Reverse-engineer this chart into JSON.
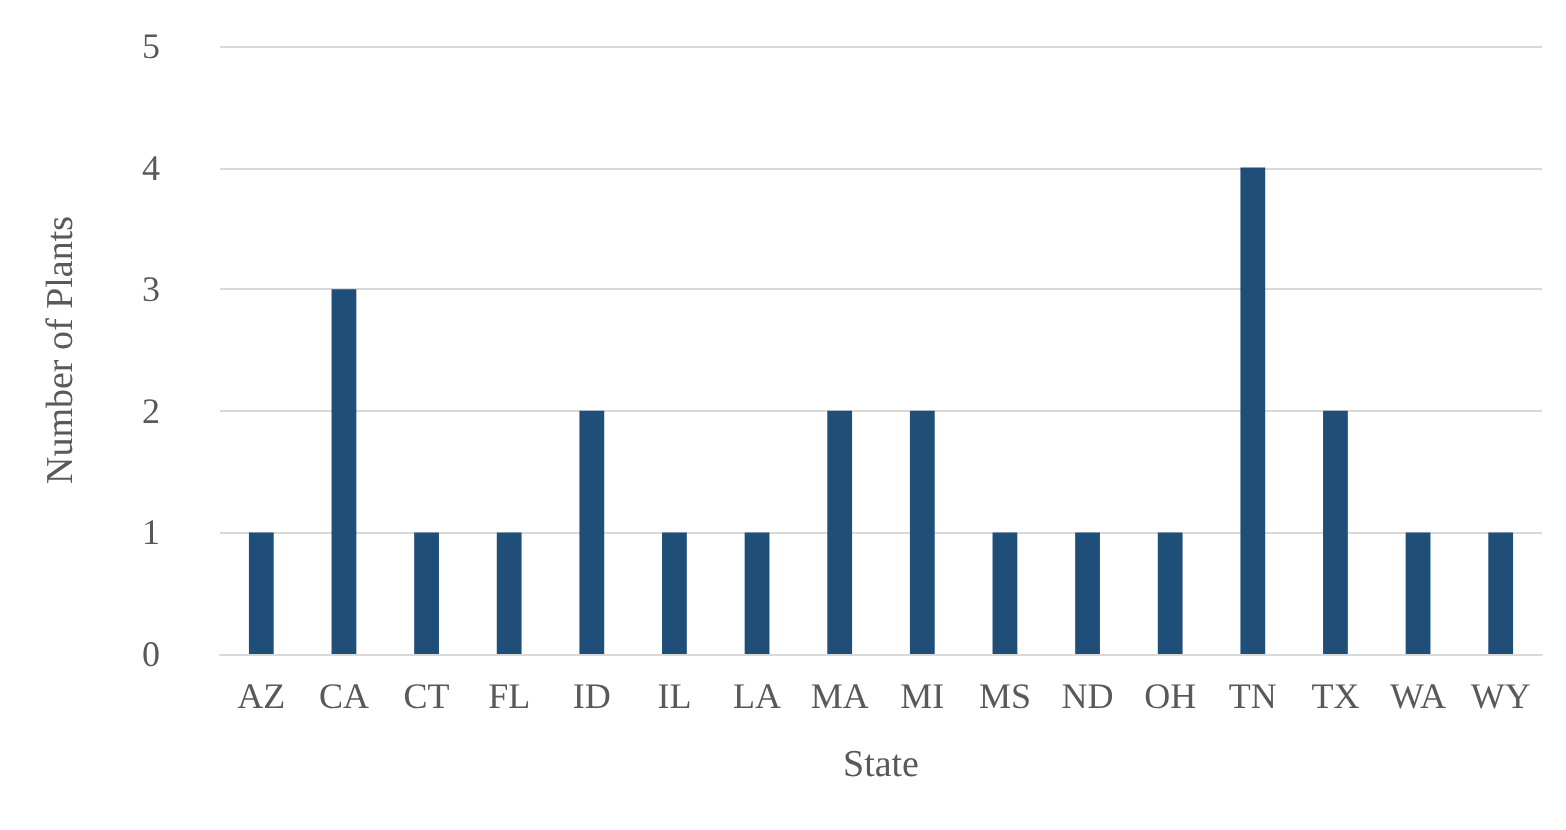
{
  "chart_data": {
    "type": "bar",
    "xlabel": "State",
    "ylabel": "Number of Plants",
    "categories": [
      "AZ",
      "CA",
      "CT",
      "FL",
      "ID",
      "IL",
      "LA",
      "MA",
      "MI",
      "MS",
      "ND",
      "OH",
      "TN",
      "TX",
      "WA",
      "WY"
    ],
    "values": [
      1,
      3,
      1,
      1,
      2,
      1,
      1,
      2,
      2,
      1,
      1,
      1,
      4,
      2,
      1,
      1
    ],
    "color": "#1f4e79",
    "ylim": [
      0,
      5
    ],
    "yticks": [
      0,
      1,
      2,
      3,
      4,
      5
    ],
    "grid": "y"
  }
}
